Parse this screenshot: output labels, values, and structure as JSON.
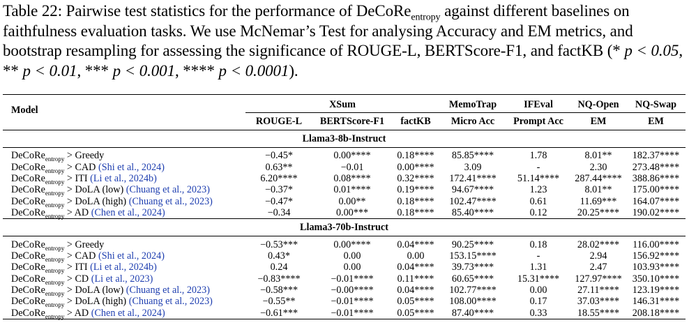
{
  "caption": {
    "label": "Table 22:",
    "text_a": "Pairwise test statistics for the performance of DeCoRe",
    "sub": "entropy",
    "text_b": " against different baselines on faithfulness evaluation tasks. We use McNemar’s Test for analysing Accuracy and EM metrics, and bootstrap resampling for assessing the significance of ROUGE-L, BERTScore-F1, and factKB (* ",
    "sig1": "p < 0.05",
    "sep1": ", ** ",
    "sig2": "p < 0.01",
    "sep2": ", *** ",
    "sig3": "p < 0.001",
    "sep3": ", **** ",
    "sig4": "p < 0.0001",
    "end": ")."
  },
  "header": {
    "model": "Model",
    "groups": [
      "XSum",
      "MemoTrap",
      "IFEval",
      "NQ-Open",
      "NQ-Swap"
    ],
    "subcols": [
      "ROUGE-L",
      "BERTScore-F1",
      "factKB",
      "Micro Acc",
      "Prompt Acc",
      "EM",
      "EM"
    ]
  },
  "model_prefix": "DeCoRe",
  "model_sub": "entropy",
  "sections": [
    {
      "title": "Llama3-8b-Instruct",
      "rows": [
        {
          "baseline": " > Greedy",
          "cite": "",
          "vals": [
            "−0.45*",
            "0.00****",
            "0.18****",
            "85.85****",
            "1.78",
            "8.01**",
            "182.37****"
          ]
        },
        {
          "baseline": " > CAD",
          "cite": " (Shi et al., 2024)",
          "vals": [
            "0.63**",
            "−0.01",
            "0.00****",
            "3.09",
            "-",
            "2.30",
            "273.48****"
          ]
        },
        {
          "baseline": " > ITI",
          "cite": " (Li et al., 2024b)",
          "vals": [
            "6.20****",
            "0.08****",
            "0.32****",
            "172.41****",
            "51.14****",
            "287.44****",
            "388.86****"
          ]
        },
        {
          "baseline": " > DoLA (low)",
          "cite": " (Chuang et al., 2023)",
          "vals": [
            "−0.37*",
            "0.01****",
            "0.19****",
            "94.67****",
            "1.23",
            "8.01**",
            "175.00****"
          ]
        },
        {
          "baseline": " > DoLA (high)",
          "cite": " (Chuang et al., 2023)",
          "vals": [
            "−0.47*",
            "0.00**",
            "0.18****",
            "102.47****",
            "0.61",
            "11.69***",
            "164.07****"
          ]
        },
        {
          "baseline": " > AD",
          "cite": " (Chen et al., 2024)",
          "vals": [
            "−0.34",
            "0.00***",
            "0.18****",
            "85.40****",
            "0.12",
            "20.25****",
            "190.02****"
          ]
        }
      ]
    },
    {
      "title": "Llama3-70b-Instruct",
      "rows": [
        {
          "baseline": " > Greedy",
          "cite": "",
          "vals": [
            "−0.53***",
            "0.00****",
            "0.04****",
            "90.25****",
            "0.18",
            "28.02****",
            "116.00****"
          ]
        },
        {
          "baseline": " > CAD",
          "cite": " (Shi et al., 2024)",
          "vals": [
            "0.43*",
            "0.00",
            "0.00",
            "153.15****",
            "-",
            "2.94",
            "156.92****"
          ]
        },
        {
          "baseline": " > ITI",
          "cite": " (Li et al., 2024b)",
          "vals": [
            "0.24",
            "0.00",
            "0.04****",
            "39.73****",
            "1.31",
            "2.47",
            "103.93****"
          ]
        },
        {
          "baseline": " > CD",
          "cite": " (Li et al., 2023)",
          "vals": [
            "−0.83****",
            "−0.01****",
            "0.11****",
            "60.65****",
            "15.31****",
            "127.97****",
            "350.10****"
          ]
        },
        {
          "baseline": " > DoLA (low)",
          "cite": " (Chuang et al., 2023)",
          "vals": [
            "−0.58***",
            "−0.00****",
            "0.04****",
            "102.77****",
            "0.00",
            "27.11****",
            "123.19****"
          ]
        },
        {
          "baseline": " > DoLA (high)",
          "cite": " (Chuang et al., 2023)",
          "vals": [
            "−0.55**",
            "−0.01****",
            "0.05****",
            "108.00****",
            "0.17",
            "37.03****",
            "146.31****"
          ]
        },
        {
          "baseline": " > AD",
          "cite": " (Chen et al., 2024)",
          "vals": [
            "−0.61***",
            "−0.01****",
            "0.05****",
            "87.40****",
            "0.33",
            "18.55****",
            "208.18****"
          ]
        }
      ]
    }
  ]
}
